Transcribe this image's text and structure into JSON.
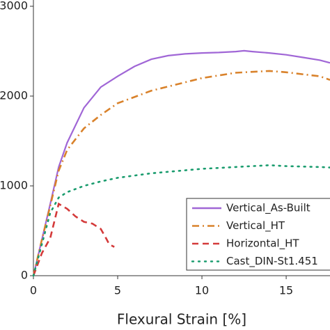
{
  "chart_data": {
    "type": "line",
    "x_label": "Flexural Strain [%]",
    "xlim": [
      0,
      17.6
    ],
    "xticks": [
      0,
      5,
      10,
      15
    ],
    "ylim": [
      0,
      3000
    ],
    "yticks": [
      0,
      1000,
      2000,
      3000
    ],
    "grid": false,
    "legend": "lower right",
    "series": [
      {
        "name": "Vertical_As-Built",
        "color": "#a066d6",
        "style": "solid",
        "x": [
          0,
          0.5,
          1,
          1.5,
          2,
          3,
          4,
          5,
          6,
          7,
          8,
          9,
          10,
          11,
          12,
          12.5,
          13,
          14,
          15,
          16,
          17,
          17.6
        ],
        "values": [
          0,
          400,
          800,
          1210,
          1480,
          1870,
          2100,
          2220,
          2330,
          2410,
          2450,
          2470,
          2480,
          2485,
          2495,
          2505,
          2495,
          2480,
          2460,
          2430,
          2400,
          2370
        ]
      },
      {
        "name": "Vertical_HT",
        "color": "#d9822b",
        "style": "dashdot",
        "x": [
          0,
          0.5,
          1,
          1.5,
          2,
          3,
          4,
          5,
          7,
          10,
          12,
          14,
          15,
          17,
          17.6
        ],
        "values": [
          0,
          400,
          780,
          1170,
          1400,
          1640,
          1790,
          1920,
          2060,
          2200,
          2260,
          2280,
          2265,
          2220,
          2180
        ]
      },
      {
        "name": "Horizontal_HT",
        "color": "#d43a3a",
        "style": "dashed",
        "x": [
          0,
          0.5,
          1,
          1.5,
          2,
          2.5,
          3,
          3.5,
          4,
          4.3,
          4.5,
          4.8
        ],
        "values": [
          0,
          250,
          420,
          800,
          745,
          660,
          600,
          580,
          520,
          420,
          350,
          320
        ]
      },
      {
        "name": "Cast_DIN-St1.451",
        "color": "#1a9c6e",
        "style": "dotted",
        "x": [
          0,
          0.5,
          1,
          1.5,
          2,
          3,
          4,
          5,
          7,
          10,
          12,
          14,
          15,
          17,
          17.6
        ],
        "values": [
          0,
          350,
          700,
          870,
          930,
          1000,
          1050,
          1090,
          1140,
          1190,
          1210,
          1230,
          1220,
          1210,
          1205
        ]
      }
    ]
  }
}
